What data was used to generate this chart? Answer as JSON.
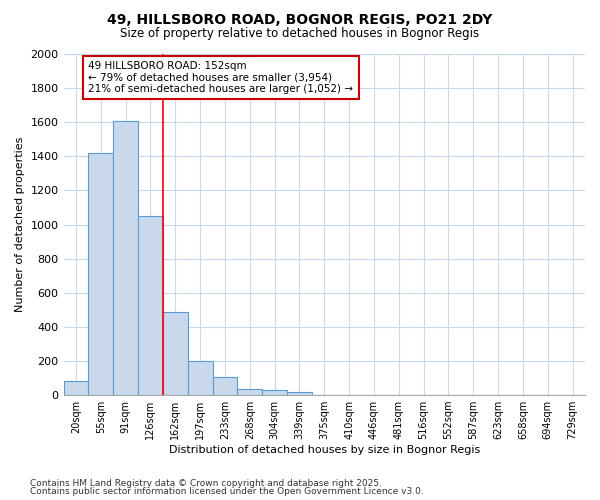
{
  "title1": "49, HILLSBORO ROAD, BOGNOR REGIS, PO21 2DY",
  "title2": "Size of property relative to detached houses in Bognor Regis",
  "xlabel": "Distribution of detached houses by size in Bognor Regis",
  "ylabel": "Number of detached properties",
  "categories": [
    "20sqm",
    "55sqm",
    "91sqm",
    "126sqm",
    "162sqm",
    "197sqm",
    "233sqm",
    "268sqm",
    "304sqm",
    "339sqm",
    "375sqm",
    "410sqm",
    "446sqm",
    "481sqm",
    "516sqm",
    "552sqm",
    "587sqm",
    "623sqm",
    "658sqm",
    "694sqm",
    "729sqm"
  ],
  "values": [
    80,
    1420,
    1610,
    1050,
    490,
    200,
    105,
    38,
    28,
    18,
    0,
    0,
    0,
    0,
    0,
    0,
    0,
    0,
    0,
    0,
    0
  ],
  "bar_color": "#c9d9eb",
  "bar_edge_color": "#5b9bd5",
  "red_line_x": 4,
  "annotation_text": "49 HILLSBORO ROAD: 152sqm\n← 79% of detached houses are smaller (3,954)\n21% of semi-detached houses are larger (1,052) →",
  "annotation_box_color": "#ffffff",
  "annotation_box_edge": "#cc0000",
  "ylim": [
    0,
    2000
  ],
  "yticks": [
    0,
    200,
    400,
    600,
    800,
    1000,
    1200,
    1400,
    1600,
    1800,
    2000
  ],
  "bg_color": "#ffffff",
  "plot_bg_color": "#ffffff",
  "grid_color": "#c8d8ed",
  "footer1": "Contains HM Land Registry data © Crown copyright and database right 2025.",
  "footer2": "Contains public sector information licensed under the Open Government Licence v3.0."
}
